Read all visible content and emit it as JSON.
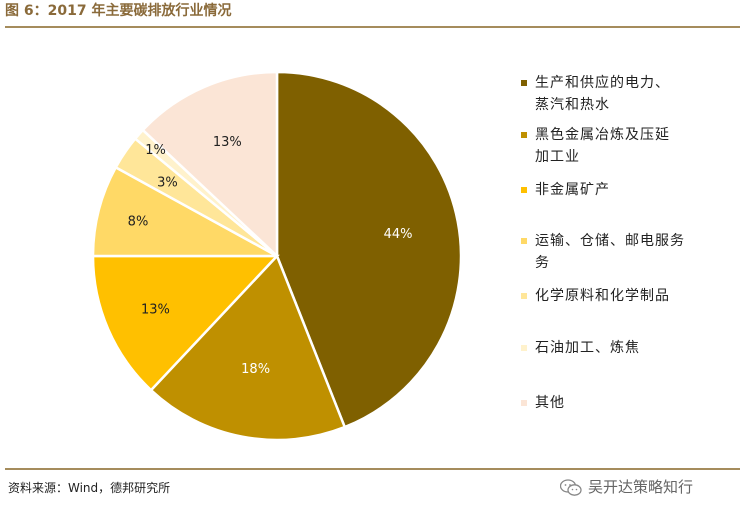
{
  "title": "图 6：2017 年主要碳排放行业情况",
  "source": "资料来源：Wind，德邦研究所",
  "brand": "吴开达策略知行",
  "icons": {
    "brand": "wechat-icon"
  },
  "chart_data": {
    "type": "pie",
    "categories": [
      "生产和供应的电力、蒸汽和热水",
      "黑色金属冶炼及压延加工业",
      "非金属矿产",
      "运输、仓储、邮电服务",
      "化学原料和化学制品",
      "石油加工、炼焦",
      "其他"
    ],
    "legend_lines": [
      [
        "生产和供应的电力、",
        "蒸汽和热水"
      ],
      [
        "黑色金属冶炼及压延",
        "加工业"
      ],
      [
        "非金属矿产"
      ],
      [
        "运输、仓储、邮电服务",
        "务"
      ],
      [
        "化学原料和化学制品"
      ],
      [
        "石油加工、炼焦"
      ],
      [
        "其他"
      ]
    ],
    "values": [
      44,
      18,
      13,
      8,
      3,
      1,
      13
    ],
    "data_labels": [
      "44%",
      "18%",
      "13%",
      "8%",
      "3%",
      "1%",
      "13%"
    ],
    "colors": [
      "#7f6000",
      "#bf9000",
      "#ffc000",
      "#ffd966",
      "#ffe699",
      "#fff2cc",
      "#fbe5d6"
    ],
    "label_colors": [
      "#ffffff",
      "#ffffff",
      "#222222",
      "#222222",
      "#222222",
      "#222222",
      "#222222"
    ],
    "legend_position": "right"
  }
}
